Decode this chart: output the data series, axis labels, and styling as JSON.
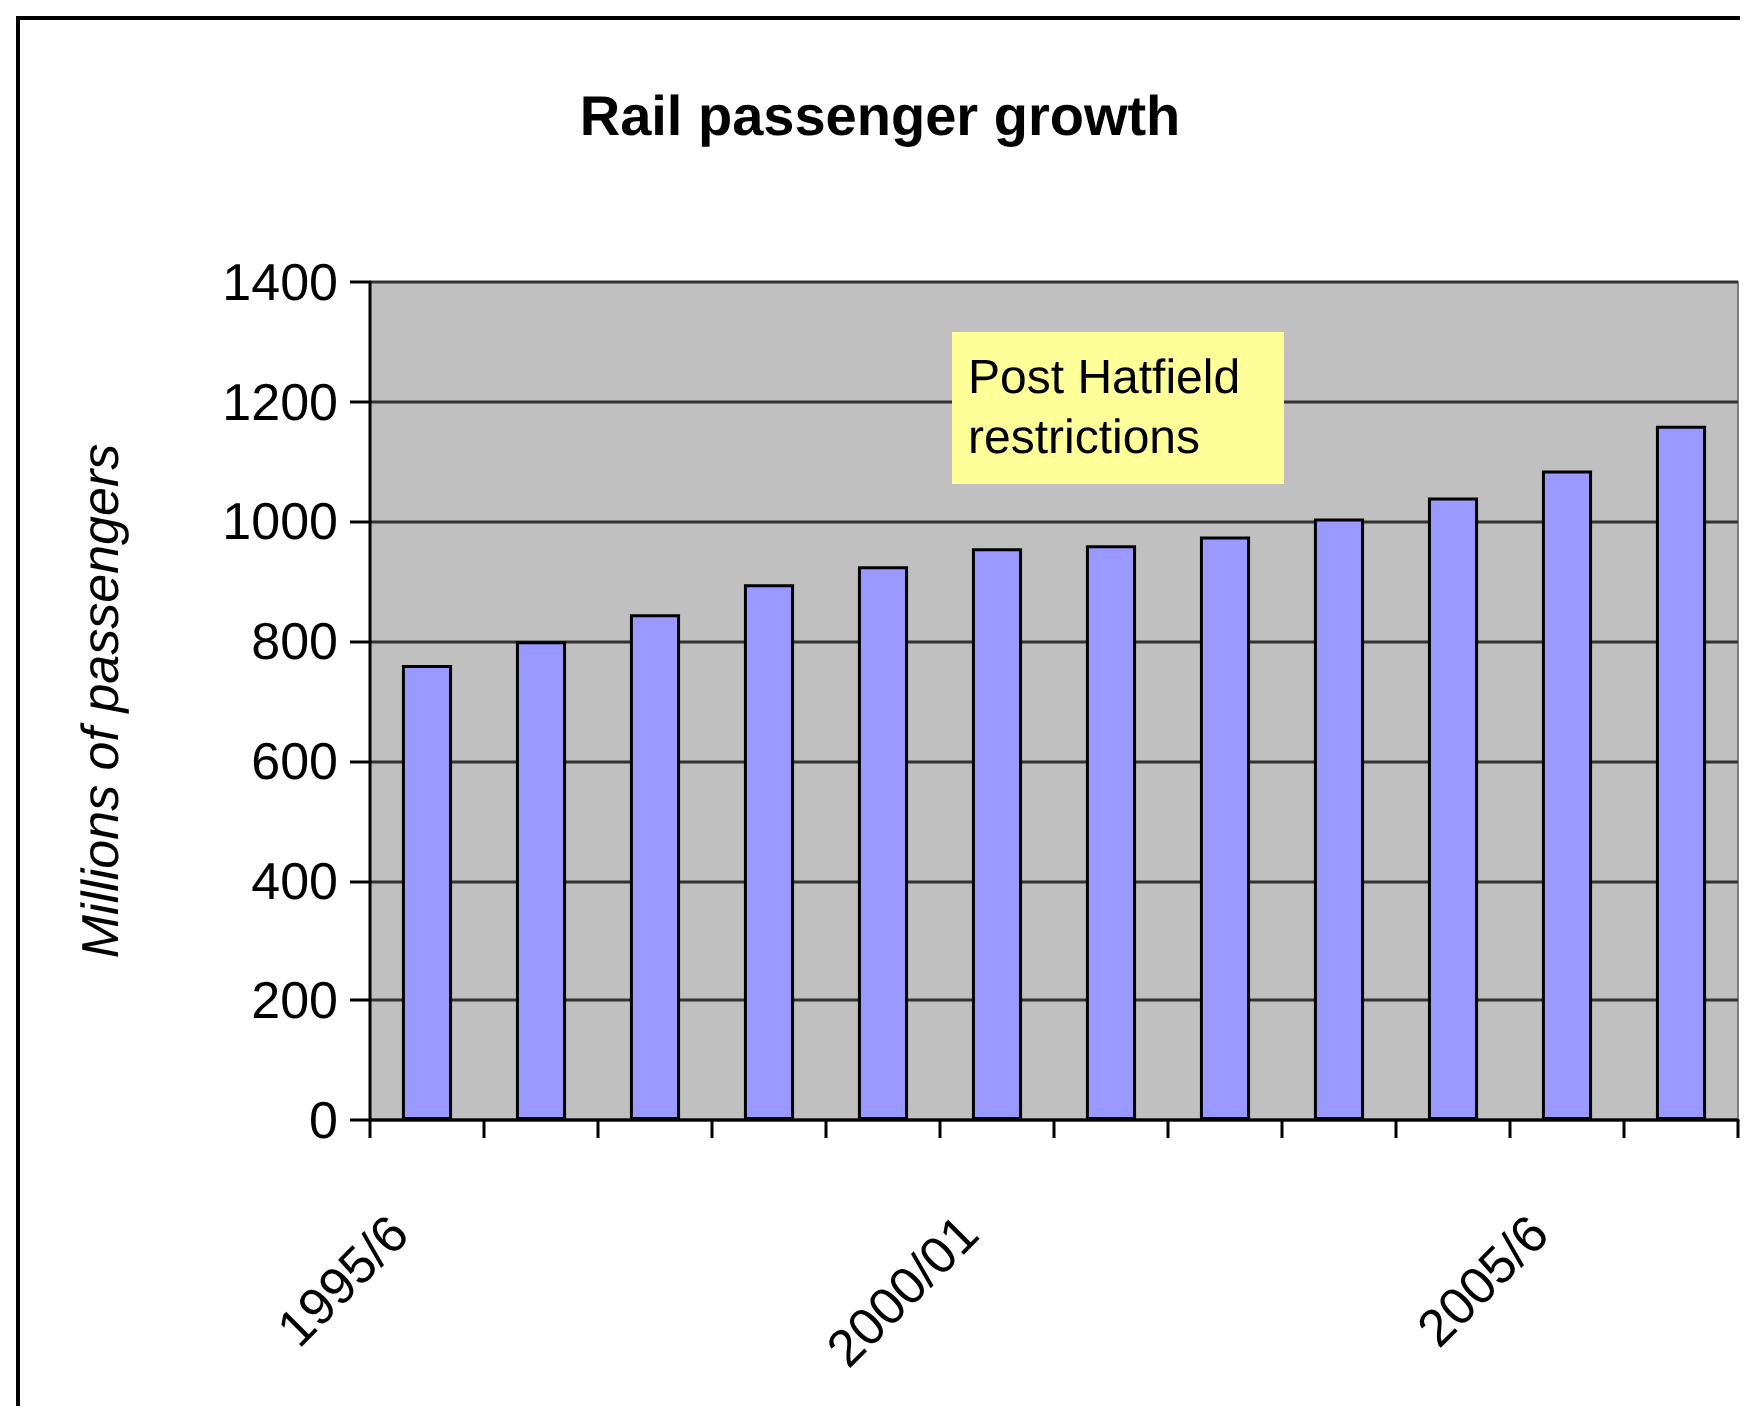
{
  "chart_data": {
    "type": "bar",
    "title": "Rail passenger growth",
    "ylabel": "Millions of passengers",
    "categories": [
      "1995/6",
      null,
      null,
      null,
      null,
      "2000/01",
      null,
      null,
      null,
      null,
      "2005/6",
      null
    ],
    "values": [
      760,
      800,
      845,
      895,
      925,
      955,
      960,
      975,
      1005,
      1040,
      1085,
      1160
    ],
    "color": "#9999ff",
    "ylim": [
      0,
      1400
    ],
    "yticks": [
      0,
      200,
      400,
      600,
      800,
      1000,
      1200,
      1400
    ],
    "grid": "y",
    "annotations": [
      "Post Hatfield restrictions"
    ]
  }
}
